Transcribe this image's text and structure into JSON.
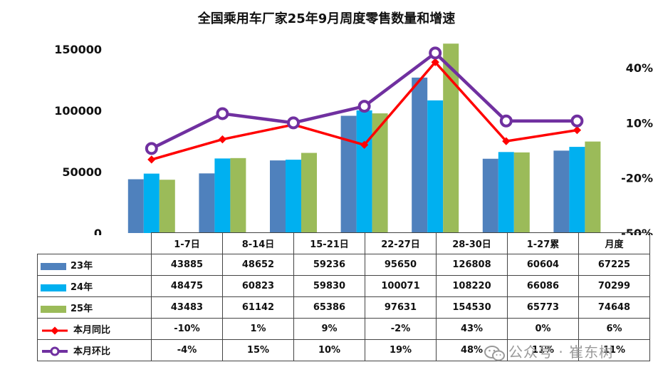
{
  "chart_data": {
    "type": "bar",
    "title": "全国乘用车厂家25年9月周度零售数量和增速",
    "categories": [
      "1-7日",
      "8-14日",
      "15-21日",
      "22-27日",
      "28-30日",
      "1-27累",
      "月度"
    ],
    "series": [
      {
        "name": "23年",
        "color": "#4f81bd",
        "values": [
          43885,
          48652,
          59236,
          95650,
          126808,
          60604,
          67225
        ]
      },
      {
        "name": "24年",
        "color": "#00b0f0",
        "values": [
          48475,
          60823,
          59830,
          100071,
          108220,
          66086,
          70299
        ]
      },
      {
        "name": "25年",
        "color": "#9bbb59",
        "values": [
          43483,
          61142,
          65386,
          97631,
          154530,
          65773,
          74648
        ]
      }
    ],
    "line_series": [
      {
        "name": "本月同比",
        "color": "#ff0000",
        "values": [
          -10,
          1,
          9,
          -2,
          43,
          0,
          6
        ],
        "labels": [
          "-10%",
          "1%",
          "9%",
          "-2%",
          "43%",
          "0%",
          "6%"
        ]
      },
      {
        "name": "本月环比",
        "color": "#7030a0",
        "values": [
          -4,
          15,
          10,
          19,
          48,
          11,
          11
        ],
        "labels": [
          "-4%",
          "15%",
          "10%",
          "19%",
          "48%",
          "11%",
          "11%"
        ]
      }
    ],
    "y_left": {
      "min": 0,
      "max": 150000,
      "ticks": [
        "0",
        "50000",
        "100000",
        "150000"
      ],
      "tick_values": [
        0,
        50000,
        100000,
        150000
      ]
    },
    "y_right": {
      "min": -50,
      "max": 40,
      "ticks": [
        "-50%",
        "-20%",
        "10%",
        "40%"
      ],
      "tick_values": [
        -50,
        -20,
        10,
        40
      ]
    },
    "grid": false,
    "legend": "table"
  },
  "watermark": "公众号 · 崔东树"
}
